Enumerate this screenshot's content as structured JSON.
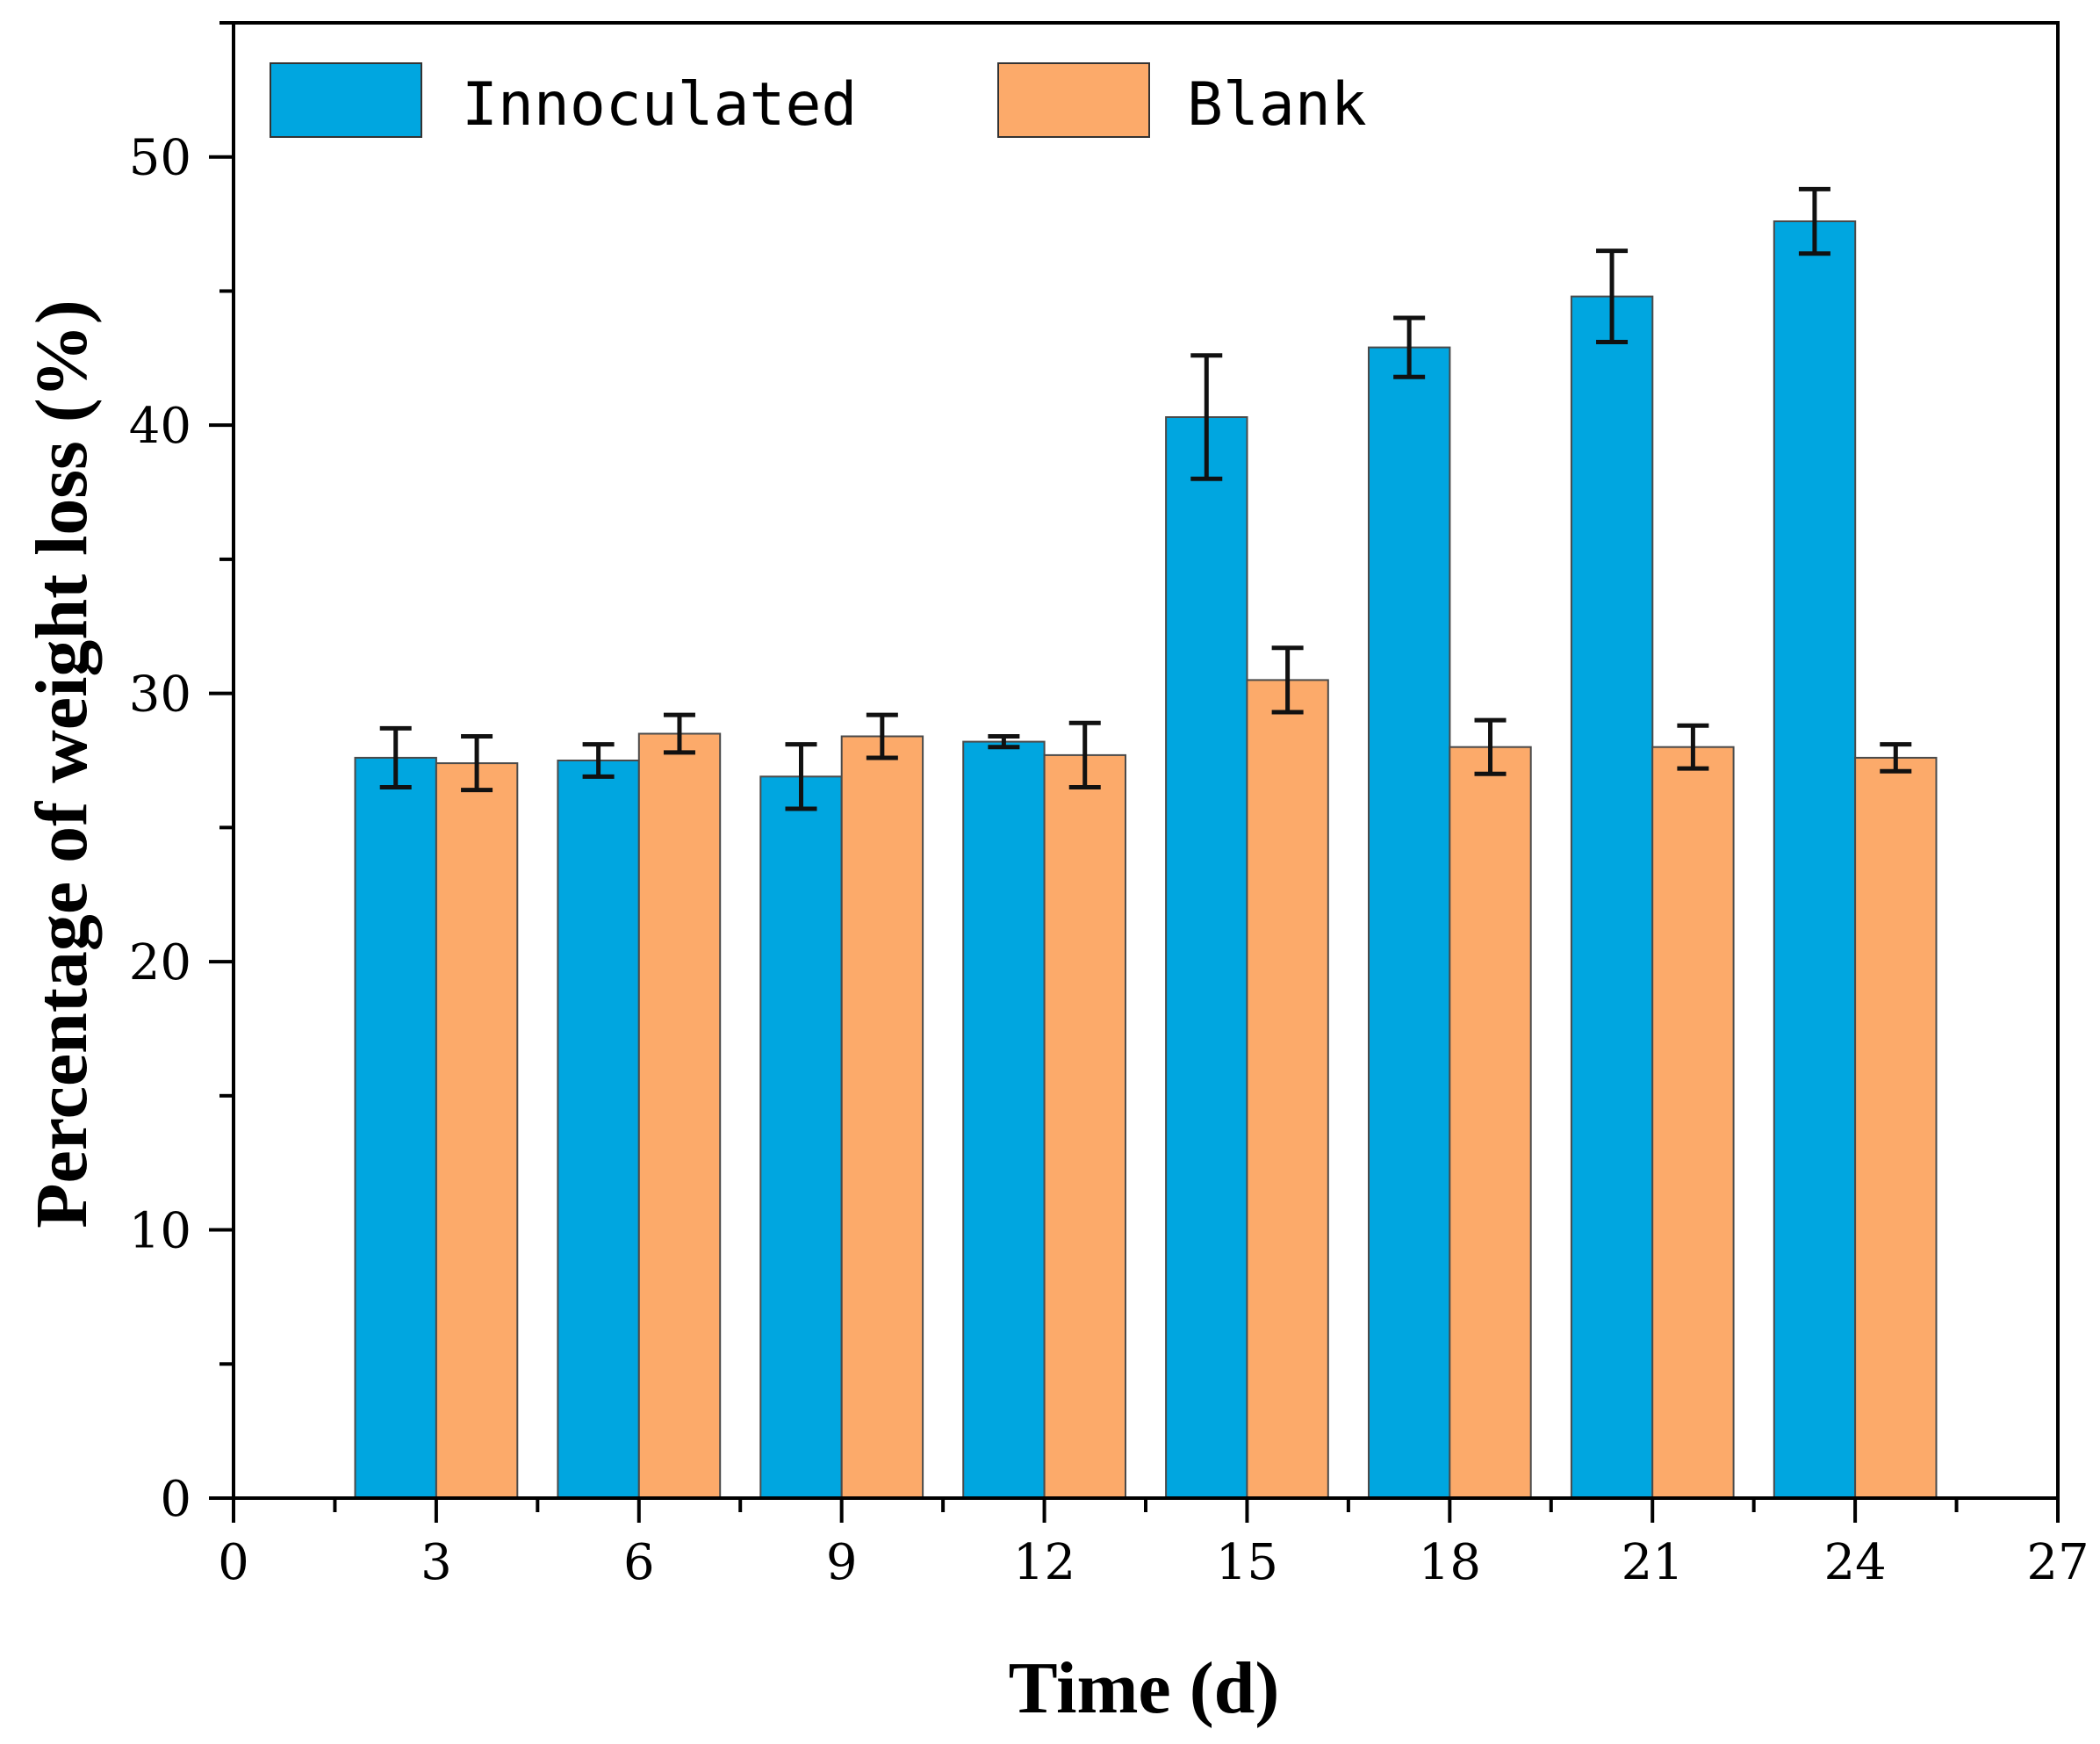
{
  "chart_data": {
    "type": "bar",
    "title": "",
    "xlabel": "Time (d)",
    "ylabel": "Percentage of weight loss (%)",
    "xlim": [
      0,
      27
    ],
    "ylim": [
      0,
      55
    ],
    "x_ticks": [
      0,
      3,
      6,
      9,
      12,
      15,
      18,
      21,
      24,
      27
    ],
    "y_ticks": [
      0,
      10,
      20,
      30,
      40,
      50
    ],
    "grid": false,
    "legend_position": "top",
    "x": [
      3,
      6,
      9,
      12,
      15,
      18,
      21,
      24
    ],
    "series": [
      {
        "name": "Innoculated",
        "color": "#00A6E0",
        "values": [
          27.6,
          27.5,
          26.9,
          28.2,
          40.3,
          42.9,
          44.8,
          47.6
        ],
        "errors": [
          1.1,
          0.6,
          1.2,
          0.2,
          2.3,
          1.1,
          1.7,
          1.2
        ]
      },
      {
        "name": "Blank",
        "color": "#FCAA6A",
        "values": [
          27.4,
          28.5,
          28.4,
          27.7,
          30.5,
          28.0,
          28.0,
          27.6
        ],
        "errors": [
          1.0,
          0.7,
          0.8,
          1.2,
          1.2,
          1.0,
          0.8,
          0.5
        ]
      }
    ]
  }
}
